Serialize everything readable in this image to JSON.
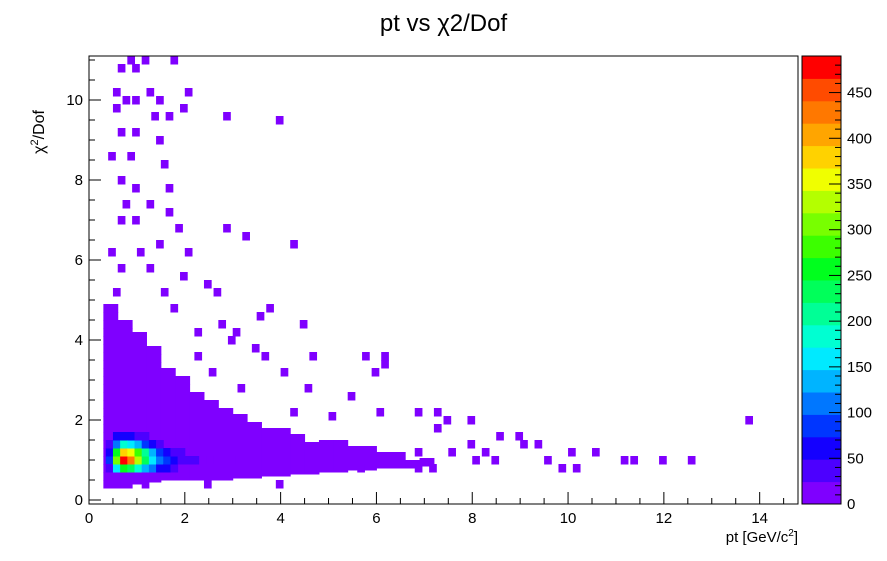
{
  "title": "pt vs χ2/Dof",
  "chart_data": {
    "type": "heatmap",
    "title": "pt vs χ2/Dof",
    "xlabel": "pt [GeV/c2]",
    "ylabel": "χ2/Dof",
    "xlim": [
      0,
      14.8
    ],
    "ylim": [
      -0.1,
      11.1
    ],
    "x_ticks": [
      "0",
      "2",
      "4",
      "6",
      "8",
      "10",
      "12",
      "14"
    ],
    "y_ticks": [
      "0",
      "2",
      "4",
      "6",
      "8",
      "10"
    ],
    "z_ticks": [
      "0",
      "50",
      "100",
      "150",
      "200",
      "250",
      "300",
      "350",
      "400",
      "450"
    ],
    "zlim": [
      0,
      490
    ],
    "palette": [
      "#7f00ff",
      "#4c00ff",
      "#1400ff",
      "#0036ff",
      "#0077ff",
      "#00b4ff",
      "#00eaff",
      "#00ffd2",
      "#00ff96",
      "#00ff5a",
      "#00ff1e",
      "#3cff00",
      "#78ff00",
      "#b4ff00",
      "#f0ff00",
      "#ffd200",
      "#ffa500",
      "#ff7800",
      "#ff4b00",
      "#ff0000"
    ],
    "bin_width": {
      "x": 0.15,
      "y": 0.2
    },
    "cells": [
      [
        0.35,
        0.9,
        80
      ],
      [
        0.35,
        1.1,
        60
      ],
      [
        0.35,
        1.3,
        30
      ],
      [
        0.35,
        0.7,
        40
      ],
      [
        0.5,
        0.7,
        170
      ],
      [
        0.5,
        0.9,
        300
      ],
      [
        0.5,
        1.1,
        250
      ],
      [
        0.5,
        1.3,
        120
      ],
      [
        0.5,
        1.5,
        50
      ],
      [
        0.65,
        0.7,
        260
      ],
      [
        0.65,
        0.9,
        480
      ],
      [
        0.65,
        1.1,
        380
      ],
      [
        0.65,
        1.3,
        180
      ],
      [
        0.65,
        1.5,
        70
      ],
      [
        0.8,
        0.7,
        240
      ],
      [
        0.8,
        0.9,
        440
      ],
      [
        0.8,
        1.1,
        350
      ],
      [
        0.8,
        1.3,
        170
      ],
      [
        0.8,
        1.5,
        60
      ],
      [
        0.95,
        0.7,
        190
      ],
      [
        0.95,
        0.9,
        330
      ],
      [
        0.95,
        1.1,
        280
      ],
      [
        0.95,
        1.3,
        130
      ],
      [
        0.95,
        1.5,
        45
      ],
      [
        1.1,
        0.7,
        140
      ],
      [
        1.1,
        0.9,
        240
      ],
      [
        1.1,
        1.1,
        200
      ],
      [
        1.1,
        1.3,
        90
      ],
      [
        1.1,
        1.5,
        30
      ],
      [
        1.25,
        0.7,
        100
      ],
      [
        1.25,
        0.9,
        170
      ],
      [
        1.25,
        1.1,
        140
      ],
      [
        1.25,
        1.3,
        60
      ],
      [
        1.4,
        0.7,
        70
      ],
      [
        1.4,
        0.9,
        110
      ],
      [
        1.4,
        1.1,
        90
      ],
      [
        1.4,
        1.3,
        35
      ],
      [
        1.55,
        0.7,
        50
      ],
      [
        1.55,
        0.9,
        75
      ],
      [
        1.55,
        1.1,
        60
      ],
      [
        1.7,
        0.7,
        35
      ],
      [
        1.7,
        0.9,
        55
      ],
      [
        1.7,
        1.1,
        40
      ],
      [
        1.85,
        0.9,
        40
      ],
      [
        1.85,
        1.1,
        30
      ],
      [
        2.0,
        0.9,
        30
      ],
      [
        2.15,
        0.9,
        25
      ],
      [
        2.3,
        0.9,
        20
      ],
      [
        2.45,
        0.9,
        15
      ],
      [
        2.6,
        0.9,
        12
      ],
      [
        2.75,
        0.9,
        10
      ],
      [
        2.9,
        0.9,
        8
      ]
    ],
    "sparse_bins": [
      [
        0.8,
        10.9
      ],
      [
        1.1,
        10.9
      ],
      [
        1.7,
        10.9
      ],
      [
        0.6,
        10.7
      ],
      [
        0.9,
        10.7
      ],
      [
        0.5,
        10.1
      ],
      [
        1.2,
        10.1
      ],
      [
        0.7,
        9.9
      ],
      [
        0.9,
        9.9
      ],
      [
        1.4,
        9.9
      ],
      [
        2.0,
        10.1
      ],
      [
        0.5,
        9.7
      ],
      [
        1.9,
        9.7
      ],
      [
        1.3,
        9.5
      ],
      [
        1.6,
        9.5
      ],
      [
        2.8,
        9.5
      ],
      [
        3.9,
        9.4
      ],
      [
        0.6,
        9.1
      ],
      [
        0.9,
        9.1
      ],
      [
        1.4,
        8.9
      ],
      [
        0.4,
        8.5
      ],
      [
        0.8,
        8.5
      ],
      [
        1.5,
        8.3
      ],
      [
        0.6,
        7.9
      ],
      [
        0.9,
        7.7
      ],
      [
        1.6,
        7.7
      ],
      [
        0.7,
        7.3
      ],
      [
        1.2,
        7.3
      ],
      [
        1.6,
        7.1
      ],
      [
        0.6,
        6.9
      ],
      [
        0.9,
        6.9
      ],
      [
        1.8,
        6.7
      ],
      [
        2.8,
        6.7
      ],
      [
        3.2,
        6.5
      ],
      [
        4.2,
        6.3
      ],
      [
        0.4,
        6.1
      ],
      [
        1.0,
        6.1
      ],
      [
        1.4,
        6.3
      ],
      [
        2.0,
        6.1
      ],
      [
        0.6,
        5.7
      ],
      [
        1.2,
        5.7
      ],
      [
        1.9,
        5.5
      ],
      [
        2.4,
        5.3
      ],
      [
        0.5,
        5.1
      ],
      [
        1.5,
        5.1
      ],
      [
        2.6,
        5.1
      ],
      [
        1.7,
        4.7
      ],
      [
        3.5,
        4.5
      ],
      [
        3.7,
        4.7
      ],
      [
        2.7,
        4.3
      ],
      [
        4.4,
        4.3
      ],
      [
        2.2,
        4.1
      ],
      [
        3.0,
        4.1
      ],
      [
        2.9,
        3.9
      ],
      [
        3.4,
        3.7
      ],
      [
        2.2,
        3.5
      ],
      [
        3.6,
        3.5
      ],
      [
        4.6,
        3.5
      ],
      [
        5.7,
        3.5
      ],
      [
        6.1,
        3.5
      ],
      [
        4.0,
        3.1
      ],
      [
        5.9,
        3.1
      ],
      [
        6.1,
        3.3
      ],
      [
        2.5,
        3.1
      ],
      [
        3.1,
        2.7
      ],
      [
        4.5,
        2.7
      ],
      [
        5.4,
        2.5
      ],
      [
        6.0,
        2.1
      ],
      [
        6.8,
        2.1
      ],
      [
        7.2,
        2.1
      ],
      [
        5.0,
        2.0
      ],
      [
        4.2,
        2.1
      ],
      [
        7.4,
        1.9
      ],
      [
        7.9,
        1.9
      ],
      [
        7.2,
        1.7
      ],
      [
        8.5,
        1.5
      ],
      [
        8.9,
        1.5
      ],
      [
        9.0,
        1.3
      ],
      [
        9.3,
        1.3
      ],
      [
        7.9,
        1.3
      ],
      [
        6.8,
        1.1
      ],
      [
        7.5,
        1.1
      ],
      [
        8.2,
        1.1
      ],
      [
        9.5,
        0.9
      ],
      [
        10.0,
        1.1
      ],
      [
        10.5,
        1.1
      ],
      [
        11.1,
        0.9
      ],
      [
        11.3,
        0.9
      ],
      [
        11.9,
        0.9
      ],
      [
        12.5,
        0.9
      ],
      [
        13.7,
        1.9
      ],
      [
        9.8,
        0.7
      ],
      [
        10.1,
        0.7
      ],
      [
        3.9,
        0.3
      ],
      [
        2.4,
        0.3
      ],
      [
        1.1,
        0.3
      ],
      [
        0.5,
        0.3
      ],
      [
        7.1,
        0.7
      ],
      [
        6.8,
        0.7
      ],
      [
        8.4,
        0.9
      ],
      [
        8.0,
        0.9
      ],
      [
        6.3,
        0.9
      ],
      [
        5.6,
        0.7
      ]
    ]
  }
}
